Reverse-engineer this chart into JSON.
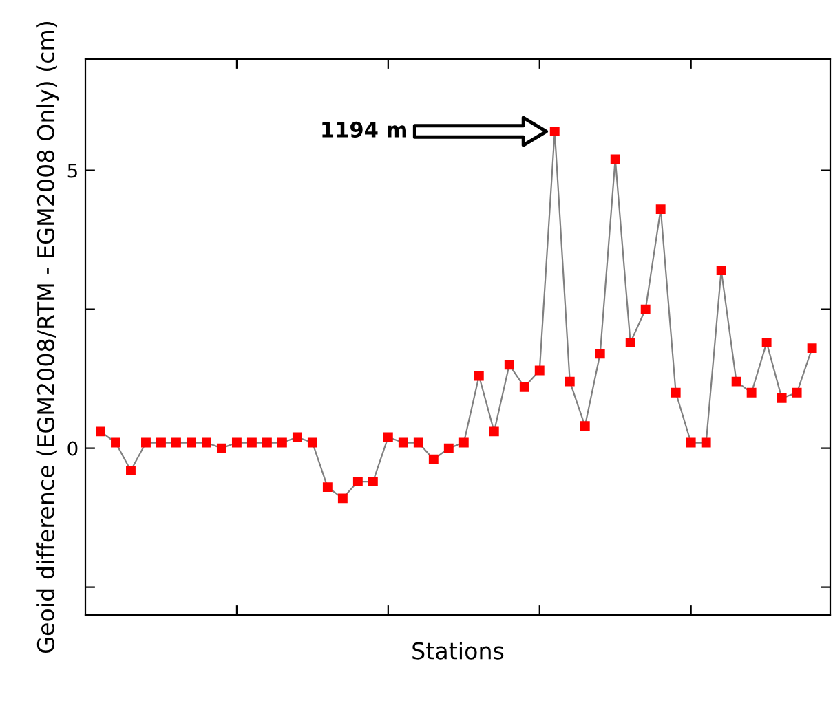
{
  "chart_data": {
    "type": "line",
    "xlabel": "Stations",
    "ylabel": "Geoid difference (EGM2008/RTM - EGM2008 Only) (cm)",
    "categories": [
      null,
      null,
      null,
      null,
      null,
      null,
      null,
      null,
      null,
      null,
      null,
      null,
      null,
      null,
      null,
      null,
      null,
      null,
      null,
      null,
      null,
      null,
      null,
      null,
      null,
      null,
      null,
      null,
      null,
      null,
      null,
      null,
      null,
      null,
      null,
      null,
      null,
      null,
      null,
      null,
      null,
      null,
      null,
      null,
      null,
      null,
      null,
      null
    ],
    "series": [
      {
        "color": "#ff0000",
        "values": [
          0.3,
          0.1,
          -0.4,
          0.1,
          0.1,
          0.1,
          0.1,
          0.1,
          0.0,
          0.1,
          0.1,
          0.1,
          0.1,
          0.2,
          0.1,
          -0.7,
          -0.9,
          -0.6,
          -0.6,
          0.2,
          0.1,
          0.1,
          -0.2,
          0.0,
          0.1,
          1.3,
          0.3,
          1.5,
          1.1,
          1.4,
          5.7,
          1.2,
          0.4,
          1.7,
          5.2,
          1.9,
          2.5,
          4.3,
          1.0,
          0.1,
          0.1,
          3.2,
          1.2,
          1.0,
          1.9,
          0.9,
          1.0,
          1.8
        ]
      }
    ],
    "ylim": [
      -3,
      7
    ],
    "yticks": [
      {
        "value": -2.5,
        "label": null
      },
      0,
      {
        "value": 2.5,
        "label": null
      },
      5
    ],
    "tick_labels": "y",
    "marker": "square",
    "line_style": "solid",
    "annotations": [
      "1194 m"
    ]
  }
}
